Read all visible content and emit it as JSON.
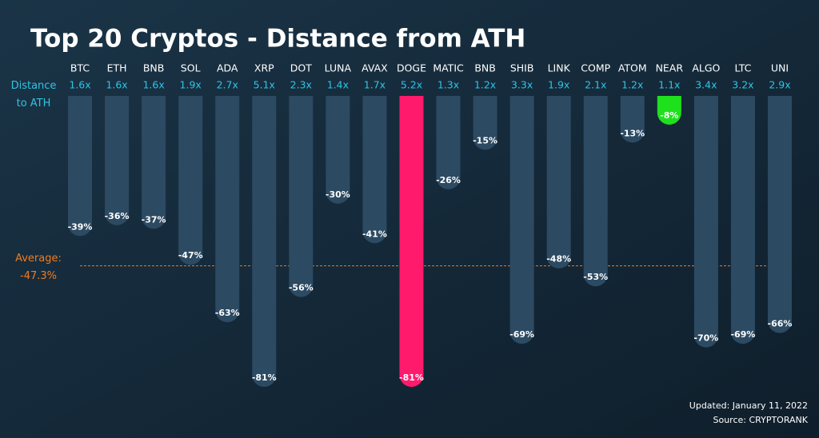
{
  "chart_data": {
    "type": "bar",
    "title": "Top 20 Cryptos - Distance from ATH",
    "multiple_label": "Distance to ATH",
    "categories": [
      "BTC",
      "ETH",
      "BNB",
      "SOL",
      "ADA",
      "XRP",
      "DOT",
      "LUNA",
      "AVAX",
      "DOGE",
      "MATIC",
      "BNB",
      "SHIB",
      "LINK",
      "COMP",
      "ATOM",
      "NEAR",
      "ALGO",
      "LTC",
      "UNI"
    ],
    "multiples": [
      "1.6x",
      "1.6x",
      "1.6x",
      "1.9x",
      "2.7x",
      "5.1x",
      "2.3x",
      "1.4x",
      "1.7x",
      "5.2x",
      "1.3x",
      "1.2x",
      "3.3x",
      "1.9x",
      "2.1x",
      "1.2x",
      "1.1x",
      "3.4x",
      "3.2x",
      "2.9x"
    ],
    "values": [
      -39,
      -36,
      -37,
      -47,
      -63,
      -81,
      -56,
      -30,
      -41,
      -81,
      -26,
      -15,
      -69,
      -48,
      -53,
      -13,
      -8,
      -70,
      -69,
      -66
    ],
    "value_labels": [
      "-39%",
      "-36%",
      "-37%",
      "-47%",
      "-63%",
      "-81%",
      "-56%",
      "-30%",
      "-41%",
      "-81%",
      "-26%",
      "-15%",
      "-69%",
      "-48%",
      "-53%",
      "-13%",
      "-8%",
      "-70%",
      "-69%",
      "-66%"
    ],
    "colors": [
      "#2c4a62",
      "#2c4a62",
      "#2c4a62",
      "#2c4a62",
      "#2c4a62",
      "#2c4a62",
      "#2c4a62",
      "#2c4a62",
      "#2c4a62",
      "#ff1a6c",
      "#2c4a62",
      "#2c4a62",
      "#2c4a62",
      "#2c4a62",
      "#2c4a62",
      "#2c4a62",
      "#1fe01c",
      "#2c4a62",
      "#2c4a62",
      "#2c4a62"
    ],
    "ylim": [
      -85,
      0
    ],
    "average": {
      "name": "Average:",
      "value": -47.3,
      "value_label": "-47.3%",
      "color": "#f07b1e"
    },
    "updated": "Updated: January 11, 2022",
    "source": "Source: CRYPTORANK"
  }
}
